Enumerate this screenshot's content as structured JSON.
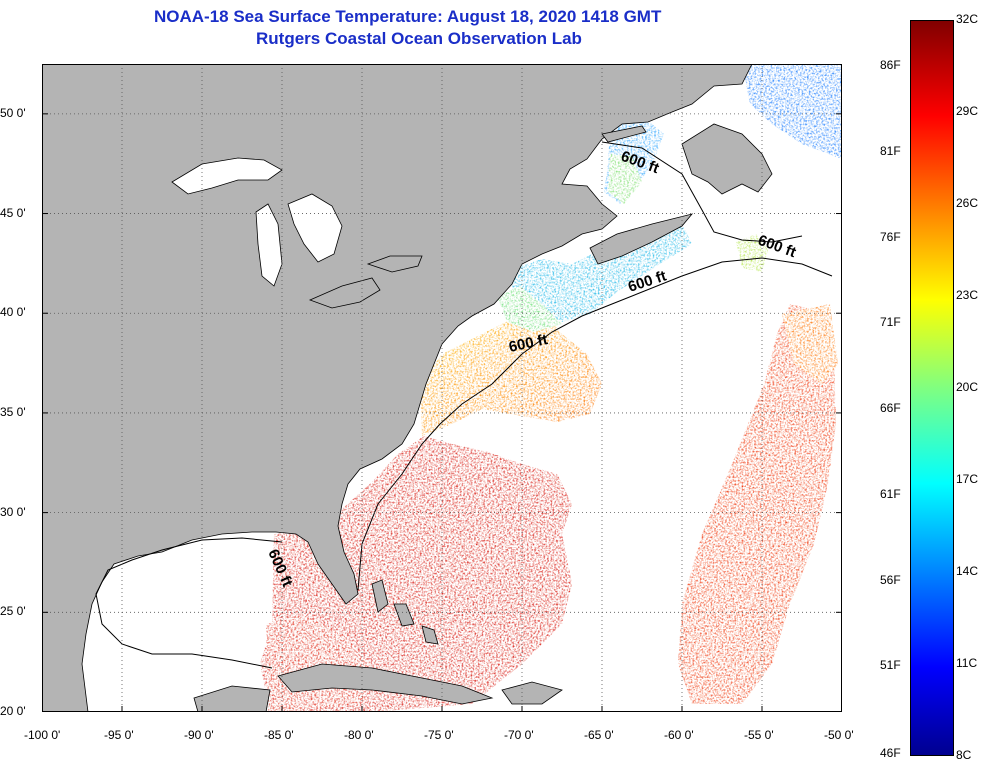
{
  "title": {
    "line1": "NOAA-18 Sea Surface Temperature:  August 18, 2020 1418 GMT",
    "line2": "Rutgers Coastal Ocean Observation Lab"
  },
  "axes": {
    "lon_labels": [
      "-100 0'",
      "-95 0'",
      "-90 0'",
      "-85 0'",
      "-80 0'",
      "-75 0'",
      "-70 0'",
      "-65 0'",
      "-60 0'",
      "-55 0'",
      "-50 0'"
    ],
    "lat_labels": [
      "50 0'",
      "45 0'",
      "40 0'",
      "35 0'",
      "30 0'",
      "25 0'",
      "20 0'"
    ],
    "lon_range": [
      -100,
      -50
    ],
    "lat_range": [
      20,
      52.5
    ]
  },
  "contour_label": "600 ft",
  "colorbar": {
    "celsius": [
      "32C",
      "29C",
      "26C",
      "23C",
      "20C",
      "17C",
      "14C",
      "11C",
      "8C"
    ],
    "fahrenheit": [
      "86F",
      "81F",
      "76F",
      "71F",
      "66F",
      "61F",
      "56F",
      "51F",
      "46F"
    ],
    "range_c": [
      8,
      32
    ],
    "range_f": [
      46,
      86
    ]
  },
  "colors": {
    "land": "#b4b4b4",
    "title": "#1a2ec8",
    "ocean_nodata": "#ffffff"
  }
}
